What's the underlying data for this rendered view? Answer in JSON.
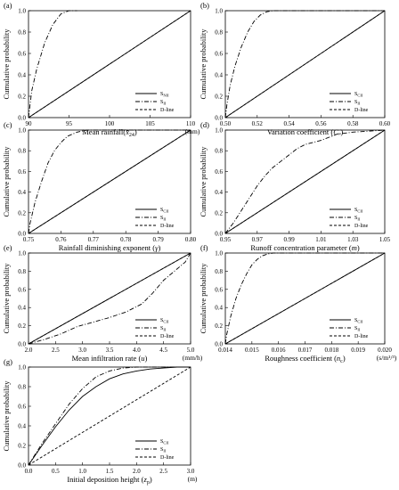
{
  "chart_data": [
    {
      "panel": "(a)",
      "type": "line",
      "xlabel": "Mean rainfall(",
      "xlabel_sym": "x̄",
      "xlabel_sub": "24",
      "xlabel_end": ")",
      "ylabel": "Cumulative probability",
      "unit": "(mm)",
      "xlim": [
        90,
        110
      ],
      "ylim": [
        0,
        1
      ],
      "xticks": [
        "90",
        "95",
        "100",
        "105",
        "110"
      ],
      "yticks": [
        "0.0",
        "0.2",
        "0.4",
        "0.6",
        "0.8",
        "1.0"
      ],
      "legend": [
        "SNII",
        "SII",
        "D-line"
      ],
      "series": [
        {
          "name": "SNII",
          "style": "solid",
          "x": [
            90,
            110
          ],
          "y": [
            0,
            1
          ]
        },
        {
          "name": "SII",
          "style": "dashdot",
          "x": [
            90,
            90.4,
            91,
            92,
            93,
            94,
            95,
            96
          ],
          "y": [
            0,
            0.25,
            0.45,
            0.7,
            0.87,
            0.97,
            1.0,
            1.0
          ]
        },
        {
          "name": "D-line",
          "style": "dashed",
          "x": [
            90,
            110
          ],
          "y": [
            0,
            1
          ]
        }
      ]
    },
    {
      "panel": "(b)",
      "type": "line",
      "xlabel": "Variation coefficient (",
      "xlabel_sym": "Cᵥ",
      "xlabel_sub": "",
      "xlabel_end": ")",
      "ylabel": "Cumulative probability",
      "unit": "",
      "xlim": [
        0.5,
        0.6
      ],
      "ylim": [
        0,
        1
      ],
      "xticks": [
        "0.50",
        "0.52",
        "0.54",
        "0.56",
        "0.58",
        "0.60"
      ],
      "yticks": [
        "0.0",
        "0.2",
        "0.4",
        "0.6",
        "0.8",
        "1.0"
      ],
      "legend": [
        "SCII",
        "SII",
        "D-line"
      ],
      "series": [
        {
          "name": "SCII",
          "style": "solid",
          "x": [
            0.5,
            0.6
          ],
          "y": [
            0,
            1
          ]
        },
        {
          "name": "SII",
          "style": "dashdot",
          "x": [
            0.5,
            0.501,
            0.503,
            0.506,
            0.51,
            0.514,
            0.518,
            0.522,
            0.526,
            0.53,
            0.6
          ],
          "y": [
            0,
            0.12,
            0.3,
            0.48,
            0.66,
            0.8,
            0.9,
            0.96,
            0.99,
            1.0,
            1.0
          ]
        },
        {
          "name": "D-line",
          "style": "dashed",
          "x": [
            0.5,
            0.6
          ],
          "y": [
            0,
            1
          ]
        }
      ]
    },
    {
      "panel": "(c)",
      "type": "line",
      "xlabel": "Rainfall diminishing exponent (",
      "xlabel_sym": "γ",
      "xlabel_sub": "",
      "xlabel_end": ")",
      "ylabel": "Cumulative probability",
      "unit": "",
      "xlim": [
        0.75,
        0.8
      ],
      "ylim": [
        0,
        1
      ],
      "xticks": [
        "0.75",
        "0.76",
        "0.77",
        "0.78",
        "0.79",
        "0.80"
      ],
      "yticks": [
        "0.0",
        "0.2",
        "0.4",
        "0.6",
        "0.8",
        "1.0"
      ],
      "legend": [
        "SCII",
        "SII",
        "D-line"
      ],
      "series": [
        {
          "name": "SCII",
          "style": "solid",
          "x": [
            0.75,
            0.8
          ],
          "y": [
            0,
            1
          ]
        },
        {
          "name": "SII",
          "style": "dashdot",
          "x": [
            0.75,
            0.7505,
            0.752,
            0.754,
            0.756,
            0.758,
            0.76,
            0.762,
            0.765,
            0.768,
            0.8
          ],
          "y": [
            0,
            0.1,
            0.3,
            0.5,
            0.68,
            0.8,
            0.88,
            0.94,
            0.98,
            1.0,
            1.0
          ]
        },
        {
          "name": "D-line",
          "style": "dashed",
          "x": [
            0.75,
            0.8
          ],
          "y": [
            0,
            1
          ]
        }
      ]
    },
    {
      "panel": "(d)",
      "type": "line",
      "xlabel": "Runoff concentration parameter (",
      "xlabel_sym": "m",
      "xlabel_sub": "",
      "xlabel_end": ")",
      "ylabel": "Cumulative probability",
      "unit": "",
      "xlim": [
        0.95,
        1.05
      ],
      "ylim": [
        0,
        1
      ],
      "xticks": [
        "0.95",
        "0.97",
        "0.99",
        "1.01",
        "1.03",
        "1.05"
      ],
      "yticks": [
        "0.0",
        "0.2",
        "0.4",
        "0.6",
        "0.8",
        "1.0"
      ],
      "legend": [
        "SCII",
        "SII",
        "D-line"
      ],
      "series": [
        {
          "name": "SCII",
          "style": "solid",
          "x": [
            0.95,
            1.05
          ],
          "y": [
            0,
            1
          ]
        },
        {
          "name": "SII",
          "style": "dashdot",
          "x": [
            0.95,
            0.955,
            0.96,
            0.965,
            0.97,
            0.975,
            0.98,
            0.985,
            0.99,
            0.995,
            1.0,
            1.005,
            1.01,
            1.015,
            1.02,
            1.025,
            1.03,
            1.04,
            1.05
          ],
          "y": [
            0,
            0.1,
            0.22,
            0.34,
            0.46,
            0.56,
            0.64,
            0.7,
            0.76,
            0.82,
            0.86,
            0.88,
            0.9,
            0.93,
            0.96,
            0.97,
            0.98,
            0.99,
            1.0
          ]
        },
        {
          "name": "D-line",
          "style": "dashed",
          "x": [
            0.95,
            1.05
          ],
          "y": [
            0,
            1
          ]
        }
      ]
    },
    {
      "panel": "(e)",
      "type": "line",
      "xlabel": "Mean infiltration rate (",
      "xlabel_sym": "u",
      "xlabel_sub": "",
      "xlabel_end": ")",
      "ylabel": "Cumulative probability",
      "unit": "(mm/h)",
      "xlim": [
        2.0,
        5.0
      ],
      "ylim": [
        0,
        1
      ],
      "xticks": [
        "2.0",
        "2.5",
        "3.0",
        "3.5",
        "4.0",
        "4.5",
        "5.0"
      ],
      "yticks": [
        "0.0",
        "0.2",
        "0.4",
        "0.6",
        "0.8",
        "1.0"
      ],
      "legend": [
        "SCII",
        "SII",
        "D-line"
      ],
      "series": [
        {
          "name": "SCII",
          "style": "solid",
          "x": [
            2.0,
            5.0
          ],
          "y": [
            0,
            1
          ]
        },
        {
          "name": "SII",
          "style": "dashdot",
          "x": [
            2.0,
            2.3,
            2.6,
            2.9,
            3.2,
            3.5,
            3.8,
            4.1,
            4.3,
            4.5,
            4.7,
            4.9,
            5.0
          ],
          "y": [
            0,
            0.05,
            0.11,
            0.19,
            0.24,
            0.29,
            0.35,
            0.44,
            0.56,
            0.7,
            0.8,
            0.9,
            1.0
          ]
        },
        {
          "name": "D-line",
          "style": "dashed",
          "x": [
            2.0,
            5.0
          ],
          "y": [
            0,
            1
          ]
        }
      ]
    },
    {
      "panel": "(f)",
      "type": "line",
      "xlabel": "Roughness coefficient (",
      "xlabel_sym": "n",
      "xlabel_sub": "c",
      "xlabel_end": ")",
      "ylabel": "Cumulative probability",
      "unit": "(s/m¹/³)",
      "xlim": [
        0.014,
        0.02
      ],
      "ylim": [
        0,
        1
      ],
      "xticks": [
        "0.014",
        "0.015",
        "0.016",
        "0.017",
        "0.018",
        "0.019",
        "0.020"
      ],
      "yticks": [
        "0.0",
        "0.2",
        "0.4",
        "0.6",
        "0.8",
        "1.0"
      ],
      "legend": [
        "SCII",
        "SII",
        "D-line"
      ],
      "series": [
        {
          "name": "SCII",
          "style": "solid",
          "x": [
            0.014,
            0.02
          ],
          "y": [
            0,
            1
          ]
        },
        {
          "name": "SII",
          "style": "dashdot",
          "x": [
            0.014,
            0.01405,
            0.0142,
            0.0144,
            0.0146,
            0.0148,
            0.015,
            0.0152,
            0.0154,
            0.0156,
            0.0158,
            0.02
          ],
          "y": [
            0,
            0.1,
            0.3,
            0.5,
            0.65,
            0.77,
            0.87,
            0.93,
            0.97,
            0.99,
            1.0,
            1.0
          ]
        },
        {
          "name": "D-line",
          "style": "dashed",
          "x": [
            0.014,
            0.02
          ],
          "y": [
            0,
            1
          ]
        }
      ]
    },
    {
      "panel": "(g)",
      "type": "line",
      "xlabel": "Initial deposition height (",
      "xlabel_sym": "z",
      "xlabel_sub": "p",
      "xlabel_end": ")",
      "ylabel": "Cumulative probability",
      "unit": "(m)",
      "xlim": [
        0,
        3.0
      ],
      "ylim": [
        0,
        1
      ],
      "xticks": [
        "0.0",
        "0.5",
        "1.0",
        "1.5",
        "2.0",
        "2.5",
        "3.0"
      ],
      "yticks": [
        "0.0",
        "0.2",
        "0.4",
        "0.6",
        "0.8",
        "1.0"
      ],
      "legend": [
        "SCII",
        "SII",
        "D-line"
      ],
      "series": [
        {
          "name": "SCII",
          "style": "solid",
          "x": [
            0,
            0.25,
            0.5,
            0.75,
            1.0,
            1.25,
            1.5,
            1.75,
            2.0,
            2.25,
            2.5,
            2.75,
            3.0
          ],
          "y": [
            0,
            0.2,
            0.39,
            0.56,
            0.7,
            0.8,
            0.88,
            0.93,
            0.96,
            0.98,
            0.99,
            1.0,
            1.0
          ]
        },
        {
          "name": "SII",
          "style": "dashdot",
          "x": [
            0,
            0.25,
            0.5,
            0.75,
            1.0,
            1.25,
            1.5,
            1.75,
            2.0,
            2.5,
            3.0
          ],
          "y": [
            0,
            0.22,
            0.42,
            0.62,
            0.78,
            0.9,
            0.96,
            0.99,
            1.0,
            1.0,
            1.0
          ]
        },
        {
          "name": "D-line",
          "style": "dashed",
          "x": [
            0,
            3.0
          ],
          "y": [
            0,
            1
          ]
        }
      ]
    }
  ]
}
